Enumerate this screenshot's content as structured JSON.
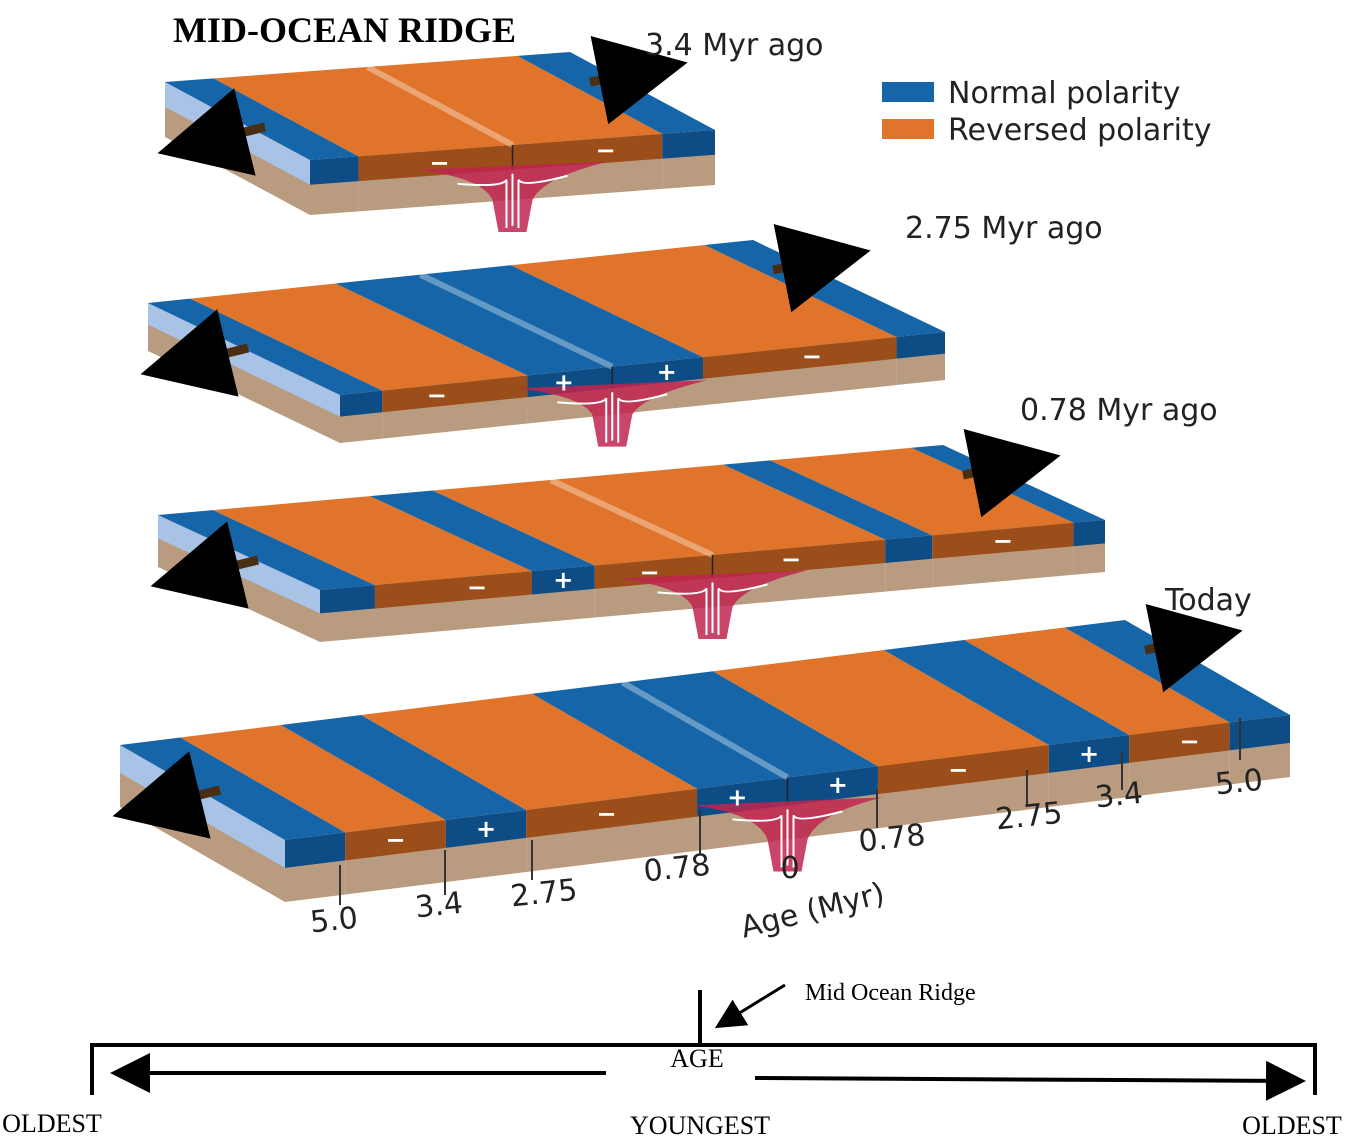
{
  "title": "MID-OCEAN RIDGE",
  "legend": {
    "normal": "Normal polarity",
    "reversed": "Reversed polarity"
  },
  "slabs": [
    {
      "label": "3.4 Myr ago",
      "signs": [
        "−",
        "−"
      ]
    },
    {
      "label": "2.75 Myr ago",
      "signs": [
        "−",
        "+",
        "+",
        "−"
      ]
    },
    {
      "label": "0.78 Myr ago",
      "signs": [
        "−",
        "+",
        "−",
        "−",
        "−"
      ]
    },
    {
      "label": "Today",
      "signs": [
        "−",
        "+",
        "−",
        "+",
        "+",
        "−",
        "+",
        "−"
      ]
    }
  ],
  "ages": [
    "5.0",
    "3.4",
    "2.75",
    "0.78",
    "0",
    "0.78",
    "2.75",
    "3.4",
    "5.0"
  ],
  "age_axis_label": "Age (Myr)",
  "timeline": {
    "ridge_label": "Mid Ocean Ridge",
    "age": "AGE",
    "youngest": "YOUNGEST",
    "left_end": "OLDEST",
    "right_end": "OLDEST"
  }
}
